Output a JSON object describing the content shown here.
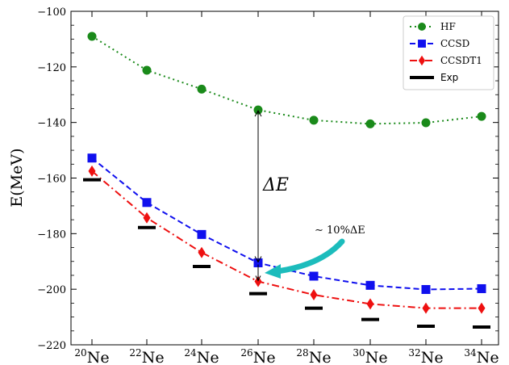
{
  "chart_data": {
    "type": "line",
    "categories": [
      "20Ne",
      "22Ne",
      "24Ne",
      "26Ne",
      "28Ne",
      "30Ne",
      "32Ne",
      "34Ne"
    ],
    "category_labels": [
      {
        "mass": "20",
        "element": "Ne"
      },
      {
        "mass": "22",
        "element": "Ne"
      },
      {
        "mass": "24",
        "element": "Ne"
      },
      {
        "mass": "26",
        "element": "Ne"
      },
      {
        "mass": "28",
        "element": "Ne"
      },
      {
        "mass": "30",
        "element": "Ne"
      },
      {
        "mass": "32",
        "element": "Ne"
      },
      {
        "mass": "34",
        "element": "Ne"
      }
    ],
    "ylabel": "E(MeV)",
    "ylim": [
      -220,
      -100
    ],
    "yticks": [
      -100,
      -120,
      -140,
      -160,
      -180,
      -200,
      -220
    ],
    "ytick_labels": [
      "−100",
      "−120",
      "−140",
      "−160",
      "−180",
      "−200",
      "−220"
    ],
    "legend_position": "top-right",
    "series": [
      {
        "name": "HF",
        "color": "#1a8a1a",
        "linestyle": "dotted",
        "marker": "circle",
        "values": [
          -109.0,
          -121.2,
          -128.0,
          -135.5,
          -139.2,
          -140.5,
          -140.1,
          -137.8
        ]
      },
      {
        "name": "CCSD",
        "color": "#1010ee",
        "linestyle": "dashed",
        "marker": "square",
        "values": [
          -152.8,
          -168.8,
          -180.3,
          -190.5,
          -195.3,
          -198.6,
          -200.1,
          -199.8
        ]
      },
      {
        "name": "CCSDT1",
        "color": "#ee1010",
        "linestyle": "dashdot",
        "marker": "diamond",
        "values": [
          -157.5,
          -174.3,
          -186.8,
          -197.2,
          -202.0,
          -205.3,
          -206.8,
          -206.8
        ]
      },
      {
        "name": "Exp",
        "color": "#000000",
        "linestyle": "none",
        "marker": "hbar",
        "values": [
          -160.6,
          -177.8,
          -191.8,
          -201.6,
          -206.8,
          -210.9,
          -213.3,
          -213.6
        ]
      }
    ],
    "annotations": {
      "delta_e": "ΔE",
      "percent_label": "∼ 10%ΔE",
      "arrow_color": "#1cbcbc"
    }
  }
}
